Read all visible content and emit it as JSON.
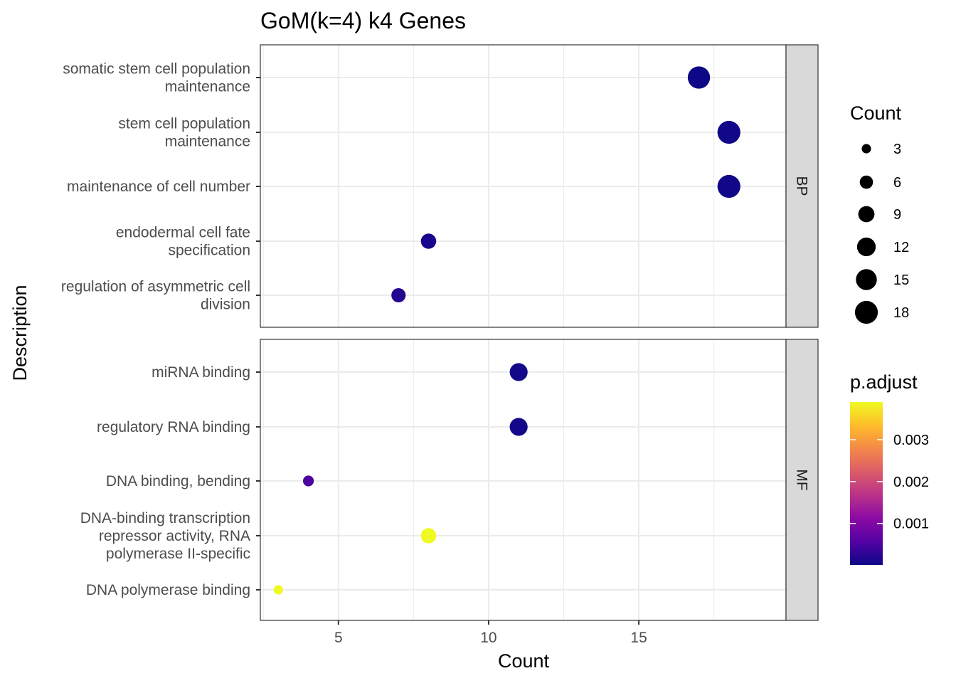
{
  "chart_data": {
    "type": "scatter",
    "title": "GoM(k=4) k4 Genes",
    "xlabel": "Count",
    "ylabel": "Description",
    "xlim": [
      2.4,
      19.9
    ],
    "x_ticks": [
      5,
      10,
      15
    ],
    "grid": true,
    "legend_placement": "right",
    "size_legend": {
      "title": "Count",
      "values": [
        3,
        6,
        9,
        12,
        15,
        18
      ],
      "labels": [
        "3",
        "6",
        "9",
        "12",
        "15",
        "18"
      ]
    },
    "color_legend": {
      "title": "p.adjust",
      "ticks": [
        0.001,
        0.002,
        0.003
      ],
      "tick_labels": [
        "0.001",
        "0.002",
        "0.003"
      ],
      "min": 1e-05,
      "max": 0.0039,
      "colors": [
        "#0d0887",
        "#5402a3",
        "#8b0aa5",
        "#b93289",
        "#db5c68",
        "#f48849",
        "#febd2a",
        "#f0f921"
      ]
    },
    "panels": [
      {
        "name": "BP",
        "points": [
          {
            "label": "somatic stem cell population\nmaintenance",
            "count": 17,
            "p_adjust": 2e-05
          },
          {
            "label": "stem cell population\nmaintenance",
            "count": 18,
            "p_adjust": 3e-05
          },
          {
            "label": "maintenance of cell number",
            "count": 18,
            "p_adjust": 3e-05
          },
          {
            "label": "endodermal cell fate\nspecification",
            "count": 8,
            "p_adjust": 0.0001
          },
          {
            "label": "regulation of asymmetric cell\ndivision",
            "count": 7,
            "p_adjust": 0.0002
          }
        ]
      },
      {
        "name": "MF",
        "points": [
          {
            "label": "miRNA binding",
            "count": 11,
            "p_adjust": 5e-05
          },
          {
            "label": "regulatory RNA binding",
            "count": 11,
            "p_adjust": 5e-05
          },
          {
            "label": "DNA binding, bending",
            "count": 4,
            "p_adjust": 0.0005
          },
          {
            "label": "DNA-binding transcription\nrepressor activity, RNA\npolymerase II-specific",
            "count": 8,
            "p_adjust": 0.0039
          },
          {
            "label": "DNA polymerase binding",
            "count": 3,
            "p_adjust": 0.0039
          }
        ]
      }
    ]
  },
  "colors": {
    "panel_border": "#333333",
    "grid_major": "#ebebeb",
    "strip_fill": "#d9d9d9",
    "legend_point": "#000000"
  }
}
